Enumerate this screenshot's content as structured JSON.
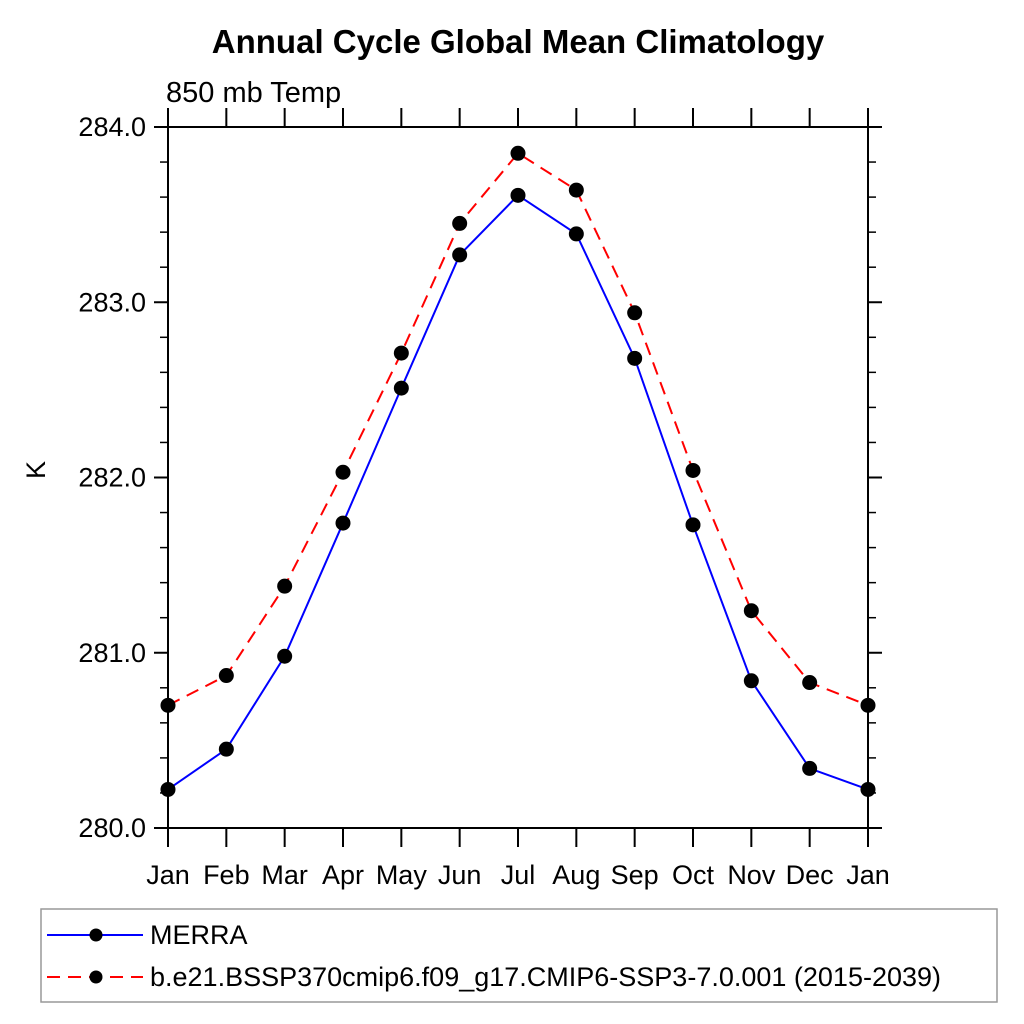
{
  "title": "Annual Cycle Global Mean Climatology",
  "subtitle": "850 mb Temp",
  "y_axis": {
    "unit_label": "K",
    "tick_labels": [
      "280.0",
      "281.0",
      "282.0",
      "283.0",
      "284.0"
    ],
    "minor_step": 0.2
  },
  "x_axis": {
    "tick_labels": [
      "Jan",
      "Feb",
      "Mar",
      "Apr",
      "May",
      "Jun",
      "Jul",
      "Aug",
      "Sep",
      "Oct",
      "Nov",
      "Dec",
      "Jan"
    ]
  },
  "legend": {
    "entries": [
      {
        "label": "MERRA",
        "color": "#0000ff",
        "line_style": "solid"
      },
      {
        "label": "b.e21.BSSP370cmip6.f09_g17.CMIP6-SSP3-7.0.001 (2015-2039)",
        "color": "#ff0000",
        "line_style": "dashed"
      }
    ]
  },
  "colors": {
    "merra_line": "#0000ff",
    "model_line": "#ff0000",
    "marker": "#000000",
    "axis": "#000000",
    "legend_border": "#999999"
  },
  "chart_data": {
    "type": "line",
    "title": "Annual Cycle Global Mean Climatology",
    "subtitle": "850 mb Temp",
    "xlabel": "",
    "ylabel": "K",
    "x": [
      "Jan",
      "Feb",
      "Mar",
      "Apr",
      "May",
      "Jun",
      "Jul",
      "Aug",
      "Sep",
      "Oct",
      "Nov",
      "Dec",
      "Jan"
    ],
    "ylim": [
      280.0,
      284.0
    ],
    "y_major_tick_interval": 1.0,
    "y_minor_tick_interval": 0.2,
    "grid": false,
    "legend_position": "bottom",
    "marker": "filled-circle",
    "series": [
      {
        "name": "MERRA",
        "color": "#0000ff",
        "line_style": "solid",
        "values": [
          280.22,
          280.45,
          280.98,
          281.74,
          282.51,
          283.27,
          283.61,
          283.39,
          282.68,
          281.73,
          280.84,
          280.34,
          280.22
        ]
      },
      {
        "name": "b.e21.BSSP370cmip6.f09_g17.CMIP6-SSP3-7.0.001 (2015-2039)",
        "color": "#ff0000",
        "line_style": "dashed",
        "values": [
          280.7,
          280.87,
          281.38,
          282.03,
          282.71,
          283.45,
          283.85,
          283.64,
          282.94,
          282.04,
          281.24,
          280.83,
          280.7
        ]
      }
    ]
  }
}
